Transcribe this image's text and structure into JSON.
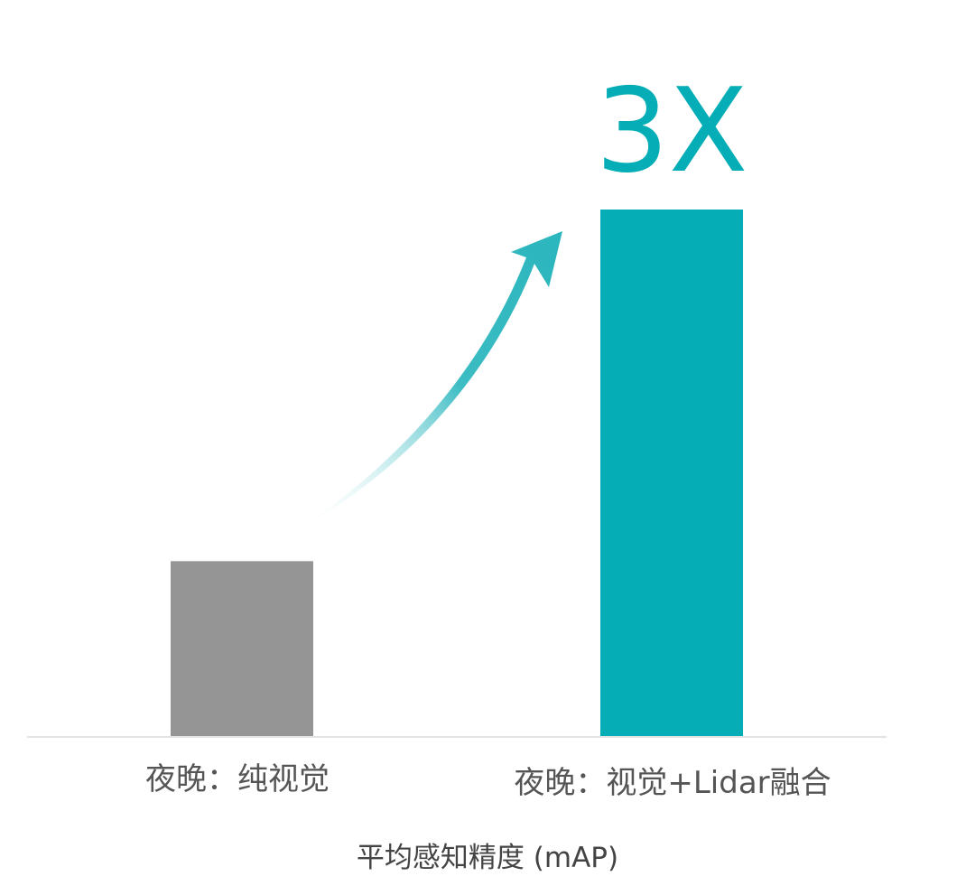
{
  "chart_data": {
    "type": "bar",
    "categories": [
      "夜晚：纯视觉",
      "夜晚：视觉+Lidar融合"
    ],
    "values": [
      1,
      3
    ],
    "xlabel": "平均感知精度 (mAP)",
    "ylabel": "",
    "ylim": [
      0,
      3.2
    ],
    "grid": false,
    "annotations": [
      {
        "text": "3X",
        "target": "夜晚：视觉+Lidar融合"
      }
    ],
    "colors": [
      "#959595",
      "#05aeb6"
    ],
    "arrow_color": "#2bb5bd",
    "axis_color": "#e3e3e3"
  }
}
